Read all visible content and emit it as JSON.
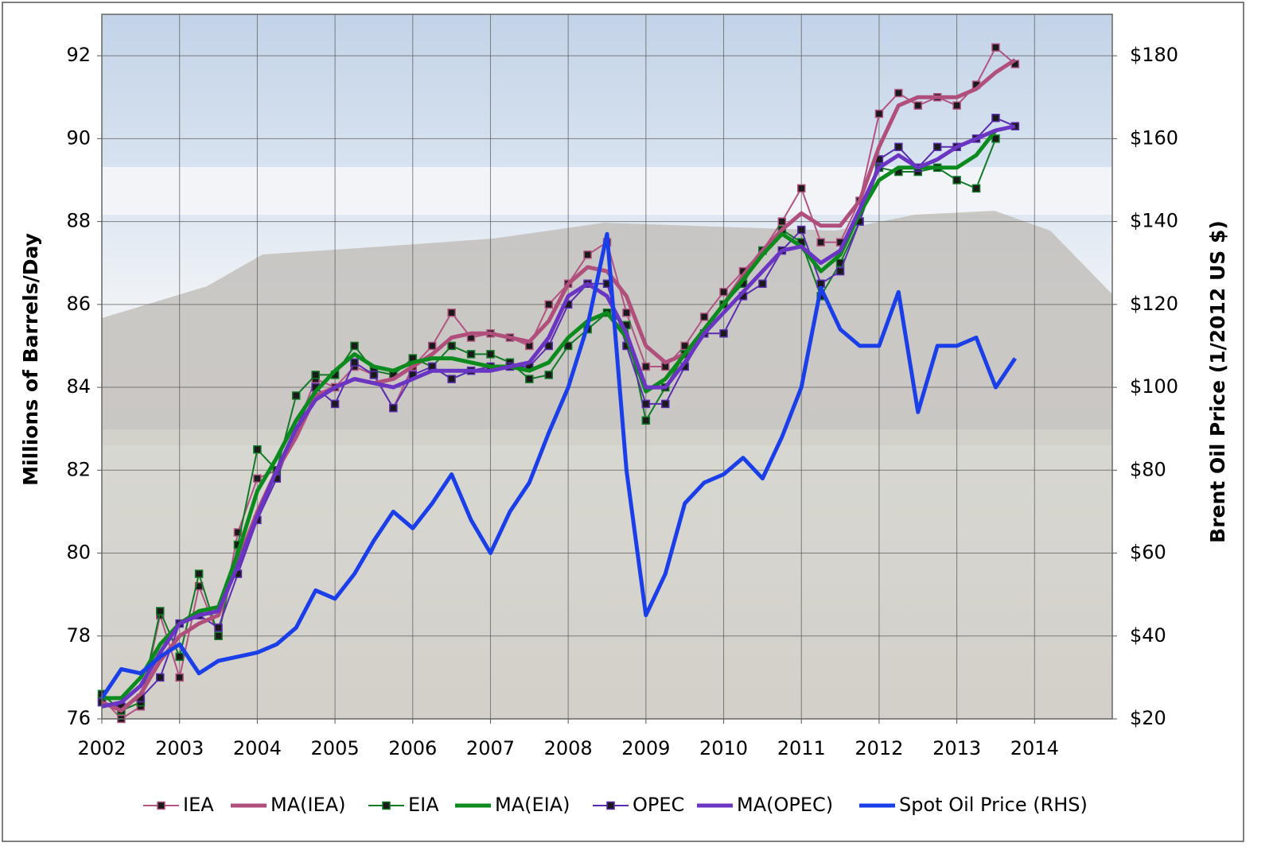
{
  "chart_data": {
    "type": "line",
    "y_label": "Millions of Barrels/Day",
    "y2_label": "Brent Oil Price (1/2012 US $)",
    "x": [
      2002,
      2002.25,
      2002.5,
      2002.75,
      2003,
      2003.25,
      2003.5,
      2003.75,
      2004,
      2004.25,
      2004.5,
      2004.75,
      2005,
      2005.25,
      2005.5,
      2005.75,
      2006,
      2006.25,
      2006.5,
      2006.75,
      2007,
      2007.25,
      2007.5,
      2007.75,
      2008,
      2008.25,
      2008.5,
      2008.75,
      2009,
      2009.25,
      2009.5,
      2009.75,
      2010,
      2010.25,
      2010.5,
      2010.75,
      2011,
      2011.25,
      2011.5,
      2011.75,
      2012,
      2012.25,
      2012.5,
      2012.75,
      2013,
      2013.25,
      2013.5,
      2013.75
    ],
    "series": [
      {
        "name": "IEA",
        "color": "#b25382",
        "markers": true,
        "values": [
          76.5,
          76.0,
          76.3,
          78.5,
          77.0,
          79.2,
          78.0,
          80.5,
          81.8,
          82.0,
          83.0,
          84.2,
          84.0,
          84.5,
          84.3,
          83.5,
          84.5,
          85.0,
          85.8,
          85.2,
          85.3,
          85.2,
          85.0,
          86.0,
          86.5,
          87.2,
          87.5,
          85.8,
          84.5,
          84.5,
          85.0,
          85.7,
          86.3,
          86.8,
          87.3,
          88.0,
          88.8,
          87.5,
          87.5,
          88.5,
          90.6,
          91.1,
          90.8,
          91.0,
          90.8,
          91.3,
          92.2,
          91.8
        ]
      },
      {
        "name": "MA(IEA)",
        "color": "#b04f7c",
        "markers": false,
        "values": [
          76.4,
          76.2,
          76.6,
          77.4,
          78.0,
          78.3,
          78.5,
          79.8,
          81.0,
          82.0,
          82.8,
          83.8,
          84.0,
          84.2,
          84.1,
          84.2,
          84.5,
          84.8,
          85.2,
          85.3,
          85.3,
          85.2,
          85.1,
          85.6,
          86.5,
          86.9,
          86.8,
          86.2,
          85.0,
          84.6,
          84.8,
          85.4,
          86.0,
          86.7,
          87.3,
          87.8,
          88.2,
          87.9,
          87.9,
          88.5,
          89.8,
          90.8,
          91.0,
          91.0,
          91.0,
          91.2,
          91.6,
          91.9
        ]
      },
      {
        "name": "EIA",
        "color": "#127a26",
        "markers": true,
        "values": [
          76.6,
          76.2,
          76.4,
          78.6,
          77.5,
          79.5,
          78.0,
          80.2,
          82.5,
          82.0,
          83.8,
          84.3,
          84.3,
          85.0,
          84.4,
          84.3,
          84.7,
          84.5,
          85.0,
          84.8,
          84.8,
          84.6,
          84.2,
          84.3,
          85.0,
          85.4,
          85.8,
          85.5,
          83.2,
          84.0,
          84.8,
          85.3,
          86.0,
          86.5,
          87.3,
          87.8,
          87.5,
          86.2,
          87.0,
          88.0,
          89.3,
          89.2,
          89.2,
          89.3,
          89.0,
          88.8,
          90.0,
          null
        ]
      },
      {
        "name": "MA(EIA)",
        "color": "#0b8a1e",
        "markers": false,
        "values": [
          76.5,
          76.5,
          77.0,
          77.8,
          78.3,
          78.6,
          78.7,
          80.0,
          81.5,
          82.3,
          83.2,
          83.9,
          84.4,
          84.8,
          84.5,
          84.4,
          84.6,
          84.7,
          84.7,
          84.6,
          84.5,
          84.5,
          84.4,
          84.6,
          85.2,
          85.6,
          85.8,
          85.2,
          83.9,
          84.2,
          84.8,
          85.4,
          86.0,
          86.6,
          87.2,
          87.7,
          87.4,
          86.8,
          87.2,
          88.2,
          89.0,
          89.3,
          89.3,
          89.3,
          89.3,
          89.6,
          90.2,
          null
        ]
      },
      {
        "name": "OPEC",
        "color": "#5a2db0",
        "markers": true,
        "values": [
          76.4,
          76.3,
          76.5,
          77.0,
          78.3,
          78.5,
          78.2,
          79.5,
          80.8,
          81.8,
          83.0,
          84.0,
          83.6,
          84.6,
          84.3,
          83.5,
          84.3,
          84.5,
          84.2,
          84.4,
          84.5,
          84.5,
          84.5,
          85.0,
          86.0,
          86.5,
          86.5,
          85.0,
          83.6,
          83.6,
          84.5,
          85.3,
          85.3,
          86.2,
          86.5,
          87.3,
          87.8,
          86.5,
          86.8,
          88.0,
          89.5,
          89.8,
          89.3,
          89.8,
          89.8,
          90.0,
          90.5,
          90.3
        ]
      },
      {
        "name": "MA(OPEC)",
        "color": "#6a35c2",
        "markers": false,
        "values": [
          76.3,
          76.4,
          76.8,
          77.6,
          78.3,
          78.5,
          78.6,
          79.7,
          80.9,
          82.0,
          83.0,
          83.7,
          84.0,
          84.2,
          84.1,
          84.0,
          84.2,
          84.4,
          84.4,
          84.4,
          84.4,
          84.5,
          84.6,
          85.2,
          86.2,
          86.5,
          86.2,
          85.3,
          84.0,
          84.0,
          84.6,
          85.3,
          85.8,
          86.3,
          86.8,
          87.3,
          87.4,
          87.0,
          87.3,
          88.3,
          89.3,
          89.6,
          89.3,
          89.5,
          89.8,
          90.0,
          90.2,
          90.3
        ]
      },
      {
        "name": "Spot Oil Price (RHS)",
        "color": "#1a3ee8",
        "markers": false,
        "axis": "y2",
        "values": [
          25,
          32,
          31,
          35,
          38,
          31,
          34,
          35,
          36,
          38,
          42,
          51,
          49,
          55,
          63,
          70,
          66,
          72,
          79,
          68,
          60,
          70,
          77,
          89,
          100,
          115,
          137,
          80,
          45,
          55,
          72,
          77,
          79,
          83,
          78,
          88,
          100,
          124,
          114,
          110,
          110,
          123,
          94,
          110,
          110,
          112,
          100,
          107
        ]
      }
    ],
    "xlim": [
      2002,
      2015
    ],
    "xticks": [
      2002,
      2003,
      2004,
      2005,
      2006,
      2007,
      2008,
      2009,
      2010,
      2011,
      2012,
      2013,
      2014
    ],
    "ylim": [
      76,
      93
    ],
    "yticks": [
      76,
      78,
      80,
      82,
      84,
      86,
      88,
      90,
      92
    ],
    "y2lim": [
      20,
      190
    ],
    "y2ticks": [
      {
        "value": 20,
        "label": "$20"
      },
      {
        "value": 40,
        "label": "$40"
      },
      {
        "value": 60,
        "label": "$60"
      },
      {
        "value": 80,
        "label": "$80"
      },
      {
        "value": 100,
        "label": "$100"
      },
      {
        "value": 120,
        "label": "$120"
      },
      {
        "value": 140,
        "label": "$140"
      },
      {
        "value": 160,
        "label": "$160"
      },
      {
        "value": 180,
        "label": "$180"
      }
    ],
    "grid": true,
    "legend": "bottom"
  }
}
